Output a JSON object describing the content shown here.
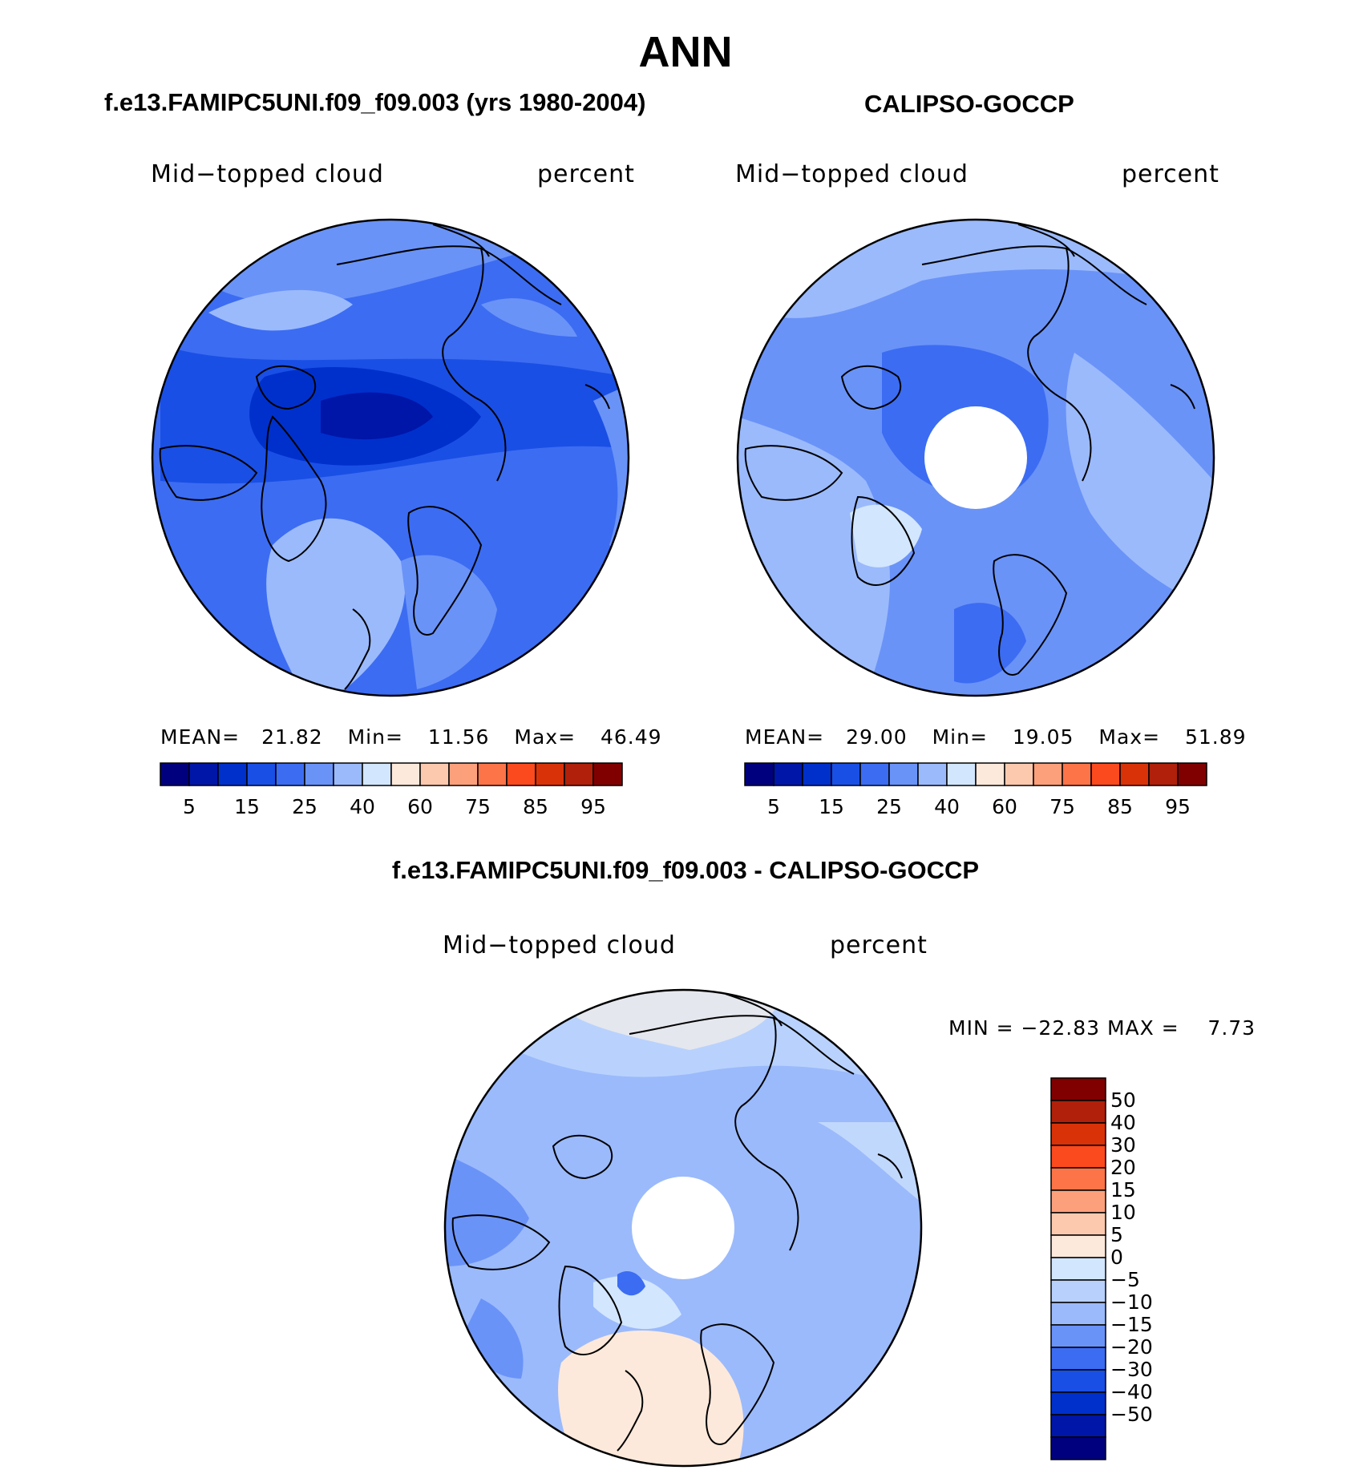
{
  "title": "ANN",
  "panels": [
    {
      "header": "f.e13.FAMIPC5UNI.f09_f09.003 (yrs 1980-2004)",
      "variable": "Mid−topped cloud",
      "units": "percent",
      "stats": {
        "mean_label": "MEAN=",
        "mean": "21.82",
        "min_label": "Min=",
        "min": "11.56",
        "max_label": "Max=",
        "max": "46.49"
      },
      "polar_hole": false
    },
    {
      "header": "CALIPSO-GOCCP",
      "variable": "Mid−topped cloud",
      "units": "percent",
      "stats": {
        "mean_label": "MEAN=",
        "mean": "29.00",
        "min_label": "Min=",
        "min": "19.05",
        "max_label": "Max=",
        "max": "51.89"
      },
      "polar_hole": true
    },
    {
      "header": "f.e13.FAMIPC5UNI.f09_f09.003 - CALIPSO-GOCCP",
      "variable": "Mid−topped cloud",
      "units": "percent",
      "stats_text": "MIN = −22.83 MAX =    7.73",
      "polar_hole": true
    }
  ],
  "colorbar_abs": {
    "colors": [
      "#00007f",
      "#0016a8",
      "#0030cc",
      "#1a4fe5",
      "#3c6cf2",
      "#6a93f8",
      "#9bbafc",
      "#d2e6fd",
      "#fde9db",
      "#fcc9ae",
      "#fca07c",
      "#fc7448",
      "#fa4a1e",
      "#d93208",
      "#b0200a",
      "#800000"
    ],
    "labels": [
      "5",
      "15",
      "25",
      "40",
      "60",
      "75",
      "85",
      "95"
    ]
  },
  "colorbar_diff": {
    "colors": [
      "#800000",
      "#b0200a",
      "#d93208",
      "#fa4a1e",
      "#fc7448",
      "#fca07c",
      "#fcc9ae",
      "#fde9db",
      "#d2e6fd",
      "#b8d0fc",
      "#9bbafc",
      "#6a93f8",
      "#3c6cf2",
      "#1a4fe5",
      "#0030cc",
      "#0016a8",
      "#00007f"
    ],
    "labels": [
      "50",
      "40",
      "30",
      "20",
      "15",
      "10",
      "5",
      "0",
      "−5",
      "−10",
      "−15",
      "−20",
      "−30",
      "−40",
      "−50"
    ]
  }
}
